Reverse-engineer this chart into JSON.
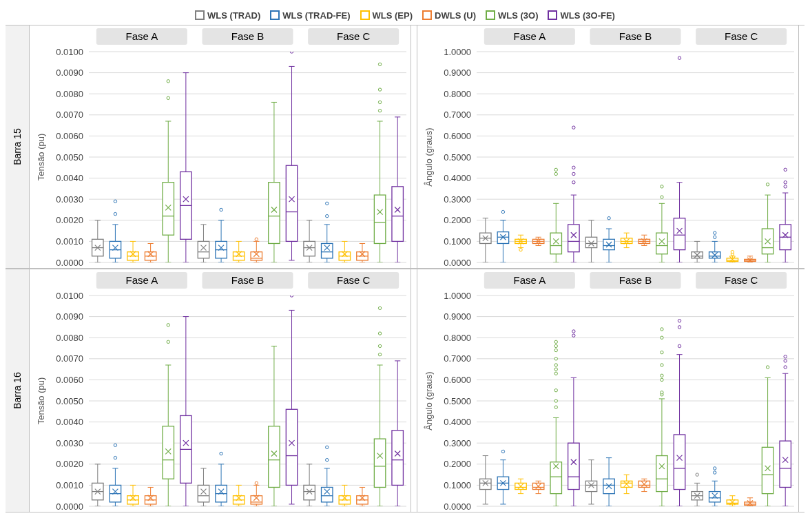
{
  "chart_data": [
    {
      "type": "box",
      "ylabel": "Tensão (pu)",
      "annotations": [
        "Barra 15"
      ],
      "legend": "top",
      "grid": "y",
      "categories": [
        "Fase A",
        "Fase B",
        "Fase C"
      ],
      "ylim": [
        0,
        0.01
      ],
      "yticks": [
        {
          "value": 0,
          "label": "0.0000"
        },
        {
          "value": 0.001,
          "label": "0.0010"
        },
        {
          "value": 0.002,
          "label": "0.0020"
        },
        {
          "value": 0.003,
          "label": "0.0030"
        },
        {
          "value": 0.004,
          "label": "0.0040"
        },
        {
          "value": 0.005,
          "label": "0.0050"
        },
        {
          "value": 0.006,
          "label": "0.0060"
        },
        {
          "value": 0.007,
          "label": "0.0070"
        },
        {
          "value": 0.008,
          "label": "0.0080"
        },
        {
          "value": 0.009,
          "label": "0.0090"
        },
        {
          "value": 0.01,
          "label": "0.0100"
        }
      ],
      "series": [
        {
          "name": "WLS (TRAD)",
          "color": "#7f7f7f",
          "boxes": [
            {
              "low": 0,
              "q1": 0.0003,
              "median": 0.0007,
              "q3": 0.0011,
              "high": 0.002,
              "mean": 0.0007
            },
            {
              "low": 0,
              "q1": 0.0002,
              "median": 0.0005,
              "q3": 0.001,
              "high": 0.0018,
              "mean": 0.0007
            },
            {
              "low": 0,
              "q1": 0.0003,
              "median": 0.0007,
              "q3": 0.001,
              "high": 0.002,
              "mean": 0.0007
            }
          ]
        },
        {
          "name": "WLS (TRAD-FE)",
          "color": "#2e75b6",
          "boxes": [
            {
              "low": 0,
              "q1": 0.0002,
              "median": 0.0006,
              "q3": 0.001,
              "high": 0.0018,
              "mean": 0.0007,
              "outliers": [
                0.0023,
                0.0029
              ]
            },
            {
              "low": 0,
              "q1": 0.0002,
              "median": 0.0006,
              "q3": 0.001,
              "high": 0.002,
              "mean": 0.0007,
              "outliers": [
                0.0025
              ]
            },
            {
              "low": 0,
              "q1": 0.0002,
              "median": 0.0005,
              "q3": 0.0009,
              "high": 0.0018,
              "mean": 0.0007,
              "outliers": [
                0.0022,
                0.0028
              ]
            }
          ]
        },
        {
          "name": "WLS (EP)",
          "color": "#ffc000",
          "boxes": [
            {
              "low": 0,
              "q1": 0.0001,
              "median": 0.0003,
              "q3": 0.0005,
              "high": 0.001,
              "mean": 0.0004
            },
            {
              "low": 0,
              "q1": 0.0001,
              "median": 0.0003,
              "q3": 0.0005,
              "high": 0.001,
              "mean": 0.0004
            },
            {
              "low": 0,
              "q1": 0.0001,
              "median": 0.0003,
              "q3": 0.0005,
              "high": 0.001,
              "mean": 0.0004
            }
          ]
        },
        {
          "name": "DWLS (U)",
          "color": "#ed7d31",
          "boxes": [
            {
              "low": 0,
              "q1": 0.0001,
              "median": 0.0003,
              "q3": 0.0005,
              "high": 0.0009,
              "mean": 0.0004
            },
            {
              "low": 0,
              "q1": 0.0001,
              "median": 0.0002,
              "q3": 0.0005,
              "high": 0.001,
              "mean": 0.0004,
              "outliers": [
                0.0011
              ]
            },
            {
              "low": 0,
              "q1": 0.0001,
              "median": 0.0003,
              "q3": 0.0005,
              "high": 0.0009,
              "mean": 0.0004
            }
          ]
        },
        {
          "name": "WLS (3O)",
          "color": "#70ad47",
          "boxes": [
            {
              "low": 0,
              "q1": 0.0013,
              "median": 0.0022,
              "q3": 0.0038,
              "high": 0.0067,
              "mean": 0.0026,
              "outliers": [
                0.0078,
                0.0086
              ]
            },
            {
              "low": 0,
              "q1": 0.0009,
              "median": 0.0022,
              "q3": 0.0038,
              "high": 0.0076,
              "mean": 0.0025
            },
            {
              "low": 0,
              "q1": 0.0009,
              "median": 0.0019,
              "q3": 0.0032,
              "high": 0.0067,
              "mean": 0.0024,
              "outliers": [
                0.0072,
                0.0076,
                0.0082,
                0.0094
              ]
            }
          ]
        },
        {
          "name": "WLS (3O-FE)",
          "color": "#7030a0",
          "boxes": [
            {
              "low": 0,
              "q1": 0.0011,
              "median": 0.0027,
              "q3": 0.0043,
              "high": 0.009,
              "mean": 0.003
            },
            {
              "low": 0.0001,
              "q1": 0.001,
              "median": 0.0024,
              "q3": 0.0046,
              "high": 0.0093,
              "mean": 0.003,
              "outliers": [
                0.01
              ]
            },
            {
              "low": 0,
              "q1": 0.001,
              "median": 0.0022,
              "q3": 0.0036,
              "high": 0.0069,
              "mean": 0.0025
            }
          ]
        }
      ]
    },
    {
      "type": "box",
      "ylabel": "Ângulo (graus)",
      "grid": "y",
      "categories": [
        "Fase A",
        "Fase B",
        "Fase C"
      ],
      "ylim": [
        0,
        1
      ],
      "yticks": [
        {
          "value": 0,
          "label": "0.0000"
        },
        {
          "value": 0.1,
          "label": "0.1000"
        },
        {
          "value": 0.2,
          "label": "0.2000"
        },
        {
          "value": 0.3,
          "label": "0.3000"
        },
        {
          "value": 0.4,
          "label": "0.4000"
        },
        {
          "value": 0.5,
          "label": "0.5000"
        },
        {
          "value": 0.6,
          "label": "0.6000"
        },
        {
          "value": 0.7,
          "label": "0.7000"
        },
        {
          "value": 0.8,
          "label": "0.8000"
        },
        {
          "value": 0.9,
          "label": "0.9000"
        },
        {
          "value": 1,
          "label": "1.0000"
        }
      ],
      "series": [
        {
          "color": "#7f7f7f",
          "boxes": [
            {
              "low": 0,
              "q1": 0.09,
              "median": 0.115,
              "q3": 0.14,
              "high": 0.21,
              "mean": 0.115
            },
            {
              "low": 0,
              "q1": 0.07,
              "median": 0.09,
              "q3": 0.12,
              "high": 0.2,
              "mean": 0.09
            },
            {
              "low": 0,
              "q1": 0.02,
              "median": 0.03,
              "q3": 0.05,
              "high": 0.1,
              "mean": 0.035
            }
          ]
        },
        {
          "color": "#2e75b6",
          "boxes": [
            {
              "low": 0,
              "q1": 0.09,
              "median": 0.12,
              "q3": 0.145,
              "high": 0.2,
              "mean": 0.12,
              "outliers": [
                0.24
              ]
            },
            {
              "low": 0,
              "q1": 0.06,
              "median": 0.08,
              "q3": 0.11,
              "high": 0.16,
              "mean": 0.085,
              "outliers": [
                0.21
              ]
            },
            {
              "low": 0,
              "q1": 0.02,
              "median": 0.03,
              "q3": 0.05,
              "high": 0.1,
              "mean": 0.035,
              "outliers": [
                0.12,
                0.14
              ]
            }
          ]
        },
        {
          "color": "#ffc000",
          "boxes": [
            {
              "low": 0.07,
              "q1": 0.09,
              "median": 0.1,
              "q3": 0.11,
              "high": 0.13,
              "mean": 0.1,
              "outliers": [
                0.06
              ]
            },
            {
              "low": 0.07,
              "q1": 0.09,
              "median": 0.1,
              "q3": 0.115,
              "high": 0.14,
              "mean": 0.1
            },
            {
              "low": 0,
              "q1": 0.005,
              "median": 0.01,
              "q3": 0.02,
              "high": 0.03,
              "mean": 0.015,
              "outliers": [
                0.04,
                0.05
              ]
            }
          ]
        },
        {
          "color": "#ed7d31",
          "boxes": [
            {
              "low": 0.08,
              "q1": 0.09,
              "median": 0.1,
              "q3": 0.11,
              "high": 0.12,
              "mean": 0.1
            },
            {
              "low": 0.08,
              "q1": 0.09,
              "median": 0.1,
              "q3": 0.11,
              "high": 0.13,
              "mean": 0.1
            },
            {
              "low": 0,
              "q1": 0.005,
              "median": 0.01,
              "q3": 0.015,
              "high": 0.03,
              "mean": 0.01
            }
          ]
        },
        {
          "color": "#70ad47",
          "boxes": [
            {
              "low": 0,
              "q1": 0.04,
              "median": 0.08,
              "q3": 0.14,
              "high": 0.28,
              "mean": 0.1,
              "outliers": [
                0.42,
                0.44
              ]
            },
            {
              "low": 0,
              "q1": 0.04,
              "median": 0.08,
              "q3": 0.14,
              "high": 0.28,
              "mean": 0.1,
              "outliers": [
                0.31,
                0.36
              ]
            },
            {
              "low": 0,
              "q1": 0.04,
              "median": 0.07,
              "q3": 0.16,
              "high": 0.32,
              "mean": 0.1,
              "outliers": [
                0.37
              ]
            }
          ]
        },
        {
          "color": "#7030a0",
          "boxes": [
            {
              "low": 0,
              "q1": 0.05,
              "median": 0.1,
              "q3": 0.18,
              "high": 0.32,
              "mean": 0.13,
              "outliers": [
                0.38,
                0.42,
                0.45,
                0.64
              ]
            },
            {
              "low": 0,
              "q1": 0.06,
              "median": 0.13,
              "q3": 0.21,
              "high": 0.38,
              "mean": 0.15,
              "outliers": [
                0.97
              ]
            },
            {
              "low": 0,
              "q1": 0.06,
              "median": 0.12,
              "q3": 0.18,
              "high": 0.33,
              "mean": 0.13,
              "outliers": [
                0.36,
                0.38,
                0.44
              ]
            }
          ]
        }
      ]
    },
    {
      "type": "box",
      "ylabel": "Tensão (pu)",
      "annotations": [
        "Barra 16"
      ],
      "grid": "y",
      "categories": [
        "Fase A",
        "Fase B",
        "Fase C"
      ],
      "ylim": [
        0,
        0.01
      ],
      "yticks": [
        {
          "value": 0,
          "label": "0.0000"
        },
        {
          "value": 0.001,
          "label": "0.0010"
        },
        {
          "value": 0.002,
          "label": "0.0020"
        },
        {
          "value": 0.003,
          "label": "0.0030"
        },
        {
          "value": 0.004,
          "label": "0.0040"
        },
        {
          "value": 0.005,
          "label": "0.0050"
        },
        {
          "value": 0.006,
          "label": "0.0060"
        },
        {
          "value": 0.007,
          "label": "0.0070"
        },
        {
          "value": 0.008,
          "label": "0.0080"
        },
        {
          "value": 0.009,
          "label": "0.0090"
        },
        {
          "value": 0.01,
          "label": "0.0100"
        }
      ],
      "series": [
        {
          "color": "#7f7f7f",
          "boxes": [
            {
              "low": 0,
              "q1": 0.0003,
              "median": 0.0007,
              "q3": 0.0011,
              "high": 0.002,
              "mean": 0.0007
            },
            {
              "low": 0,
              "q1": 0.0002,
              "median": 0.0005,
              "q3": 0.001,
              "high": 0.0018,
              "mean": 0.0007
            },
            {
              "low": 0,
              "q1": 0.0003,
              "median": 0.0007,
              "q3": 0.001,
              "high": 0.002,
              "mean": 0.0007
            }
          ]
        },
        {
          "color": "#2e75b6",
          "boxes": [
            {
              "low": 0,
              "q1": 0.0002,
              "median": 0.0006,
              "q3": 0.001,
              "high": 0.0018,
              "mean": 0.0007,
              "outliers": [
                0.0023,
                0.0029
              ]
            },
            {
              "low": 0,
              "q1": 0.0002,
              "median": 0.0006,
              "q3": 0.001,
              "high": 0.002,
              "mean": 0.0007,
              "outliers": [
                0.0025
              ]
            },
            {
              "low": 0,
              "q1": 0.0002,
              "median": 0.0005,
              "q3": 0.0009,
              "high": 0.0018,
              "mean": 0.0007,
              "outliers": [
                0.0022,
                0.0028
              ]
            }
          ]
        },
        {
          "color": "#ffc000",
          "boxes": [
            {
              "low": 0,
              "q1": 0.0001,
              "median": 0.0003,
              "q3": 0.0005,
              "high": 0.001,
              "mean": 0.0004
            },
            {
              "low": 0,
              "q1": 0.0001,
              "median": 0.0003,
              "q3": 0.0005,
              "high": 0.001,
              "mean": 0.0004
            },
            {
              "low": 0,
              "q1": 0.0001,
              "median": 0.0003,
              "q3": 0.0005,
              "high": 0.001,
              "mean": 0.0004
            }
          ]
        },
        {
          "color": "#ed7d31",
          "boxes": [
            {
              "low": 0,
              "q1": 0.0001,
              "median": 0.0003,
              "q3": 0.0005,
              "high": 0.0009,
              "mean": 0.0004
            },
            {
              "low": 0,
              "q1": 0.0001,
              "median": 0.0002,
              "q3": 0.0005,
              "high": 0.001,
              "mean": 0.0004,
              "outliers": [
                0.0011
              ]
            },
            {
              "low": 0,
              "q1": 0.0001,
              "median": 0.0003,
              "q3": 0.0005,
              "high": 0.0009,
              "mean": 0.0004
            }
          ]
        },
        {
          "color": "#70ad47",
          "boxes": [
            {
              "low": 0,
              "q1": 0.0013,
              "median": 0.0022,
              "q3": 0.0038,
              "high": 0.0067,
              "mean": 0.0026,
              "outliers": [
                0.0078,
                0.0086
              ]
            },
            {
              "low": 0,
              "q1": 0.0009,
              "median": 0.0022,
              "q3": 0.0038,
              "high": 0.0076,
              "mean": 0.0025
            },
            {
              "low": 0,
              "q1": 0.0009,
              "median": 0.0019,
              "q3": 0.0032,
              "high": 0.0067,
              "mean": 0.0024,
              "outliers": [
                0.0072,
                0.0076,
                0.0082,
                0.0094
              ]
            }
          ]
        },
        {
          "color": "#7030a0",
          "boxes": [
            {
              "low": 0,
              "q1": 0.0011,
              "median": 0.0027,
              "q3": 0.0043,
              "high": 0.009,
              "mean": 0.003
            },
            {
              "low": 0.0001,
              "q1": 0.001,
              "median": 0.0024,
              "q3": 0.0046,
              "high": 0.0093,
              "mean": 0.003,
              "outliers": [
                0.01
              ]
            },
            {
              "low": 0,
              "q1": 0.001,
              "median": 0.0022,
              "q3": 0.0036,
              "high": 0.0069,
              "mean": 0.0025
            }
          ]
        }
      ]
    },
    {
      "type": "box",
      "ylabel": "Ângulo (graus)",
      "grid": "y",
      "categories": [
        "Fase A",
        "Fase B",
        "Fase C"
      ],
      "ylim": [
        0,
        1
      ],
      "yticks": [
        {
          "value": 0,
          "label": "0.0000"
        },
        {
          "value": 0.1,
          "label": "0.1000"
        },
        {
          "value": 0.2,
          "label": "0.2000"
        },
        {
          "value": 0.3,
          "label": "0.3000"
        },
        {
          "value": 0.4,
          "label": "0.4000"
        },
        {
          "value": 0.5,
          "label": "0.5000"
        },
        {
          "value": 0.6,
          "label": "0.6000"
        },
        {
          "value": 0.7,
          "label": "0.7000"
        },
        {
          "value": 0.8,
          "label": "0.8000"
        },
        {
          "value": 0.9,
          "label": "0.9000"
        },
        {
          "value": 1,
          "label": "1.0000"
        }
      ],
      "series": [
        {
          "color": "#7f7f7f",
          "boxes": [
            {
              "low": 0.01,
              "q1": 0.08,
              "median": 0.11,
              "q3": 0.13,
              "high": 0.24,
              "mean": 0.11
            },
            {
              "low": 0.01,
              "q1": 0.07,
              "median": 0.1,
              "q3": 0.12,
              "high": 0.22,
              "mean": 0.1
            },
            {
              "low": 0,
              "q1": 0.03,
              "median": 0.05,
              "q3": 0.07,
              "high": 0.11,
              "mean": 0.05,
              "outliers": [
                0.15
              ]
            }
          ]
        },
        {
          "color": "#2e75b6",
          "boxes": [
            {
              "low": 0.01,
              "q1": 0.08,
              "median": 0.11,
              "q3": 0.14,
              "high": 0.22,
              "mean": 0.11,
              "outliers": [
                0.26
              ]
            },
            {
              "low": 0,
              "q1": 0.06,
              "median": 0.1,
              "q3": 0.13,
              "high": 0.23,
              "mean": 0.095
            },
            {
              "low": 0,
              "q1": 0.02,
              "median": 0.04,
              "q3": 0.07,
              "high": 0.12,
              "mean": 0.05,
              "outliers": [
                0.16,
                0.18
              ]
            }
          ]
        },
        {
          "color": "#ffc000",
          "boxes": [
            {
              "low": 0.06,
              "q1": 0.08,
              "median": 0.09,
              "q3": 0.11,
              "high": 0.13,
              "mean": 0.095
            },
            {
              "low": 0.06,
              "q1": 0.09,
              "median": 0.11,
              "q3": 0.12,
              "high": 0.15,
              "mean": 0.105
            },
            {
              "low": 0,
              "q1": 0.01,
              "median": 0.015,
              "q3": 0.03,
              "high": 0.05,
              "mean": 0.02
            }
          ]
        },
        {
          "color": "#ed7d31",
          "boxes": [
            {
              "low": 0.06,
              "q1": 0.08,
              "median": 0.09,
              "q3": 0.11,
              "high": 0.12,
              "mean": 0.095
            },
            {
              "low": 0.07,
              "q1": 0.09,
              "median": 0.1,
              "q3": 0.12,
              "high": 0.13,
              "mean": 0.105
            },
            {
              "low": 0,
              "q1": 0.005,
              "median": 0.01,
              "q3": 0.02,
              "high": 0.04,
              "mean": 0.015
            }
          ]
        },
        {
          "color": "#70ad47",
          "boxes": [
            {
              "low": 0,
              "q1": 0.06,
              "median": 0.14,
              "q3": 0.21,
              "high": 0.42,
              "mean": 0.19,
              "outliers": [
                0.47,
                0.5,
                0.55,
                0.63,
                0.65,
                0.67,
                0.7,
                0.74,
                0.76,
                0.78
              ]
            },
            {
              "low": 0,
              "q1": 0.07,
              "median": 0.13,
              "q3": 0.24,
              "high": 0.51,
              "mean": 0.19,
              "outliers": [
                0.53,
                0.54,
                0.6,
                0.62,
                0.67,
                0.73,
                0.8,
                0.84
              ]
            },
            {
              "low": 0,
              "q1": 0.06,
              "median": 0.15,
              "q3": 0.28,
              "high": 0.61,
              "mean": 0.18,
              "outliers": [
                0.66
              ]
            }
          ]
        },
        {
          "color": "#7030a0",
          "boxes": [
            {
              "low": 0,
              "q1": 0.08,
              "median": 0.14,
              "q3": 0.3,
              "high": 0.61,
              "mean": 0.21,
              "outliers": [
                0.81,
                0.83
              ]
            },
            {
              "low": 0,
              "q1": 0.08,
              "median": 0.18,
              "q3": 0.34,
              "high": 0.72,
              "mean": 0.23,
              "outliers": [
                0.76,
                0.85,
                0.88
              ]
            },
            {
              "low": 0,
              "q1": 0.09,
              "median": 0.18,
              "q3": 0.31,
              "high": 0.63,
              "mean": 0.22,
              "outliers": [
                0.66,
                0.69,
                0.71
              ]
            }
          ]
        }
      ]
    }
  ]
}
